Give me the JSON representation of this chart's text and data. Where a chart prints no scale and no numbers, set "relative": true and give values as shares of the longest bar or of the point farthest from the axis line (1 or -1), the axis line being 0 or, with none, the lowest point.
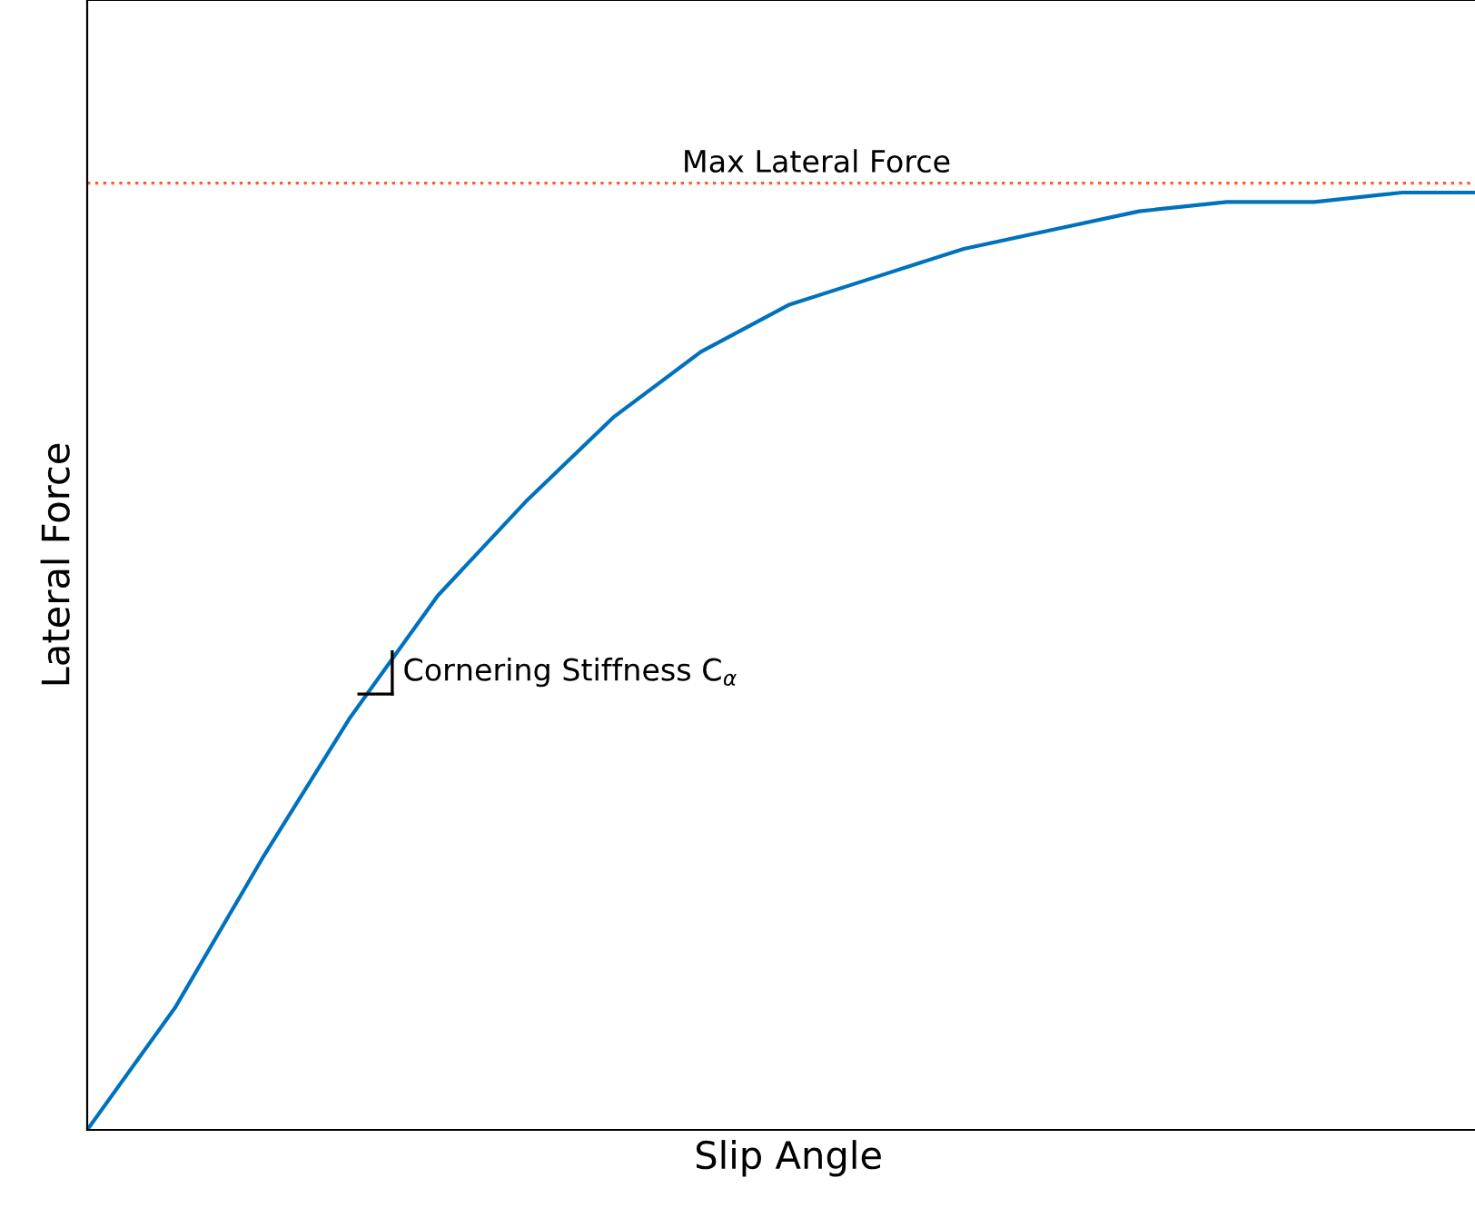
{
  "chart_data": {
    "type": "line",
    "relative": true,
    "xlabel": "Slip Angle",
    "ylabel": "Lateral Force",
    "categories": [
      null,
      null,
      null,
      null,
      null,
      null,
      null,
      null,
      null,
      null,
      null,
      null,
      null,
      null,
      null,
      null,
      null
    ],
    "series": [
      {
        "color": "#0072bd",
        "values": [
          0,
          0.13,
          0.29,
          0.44,
          0.57,
          0.67,
          0.76,
          0.83,
          0.88,
          0.91,
          0.94,
          0.96,
          0.98,
          0.99,
          0.99,
          1.0,
          1.0
        ]
      }
    ],
    "ref_lines": [
      {
        "axis": "y",
        "value": 1.01,
        "label": "Max Lateral Force",
        "color": "#ff5a36",
        "line_style": "dotted"
      }
    ],
    "annotations": [
      "Cornering Stiffness C$_{α}$"
    ],
    "line_style": "solid"
  }
}
